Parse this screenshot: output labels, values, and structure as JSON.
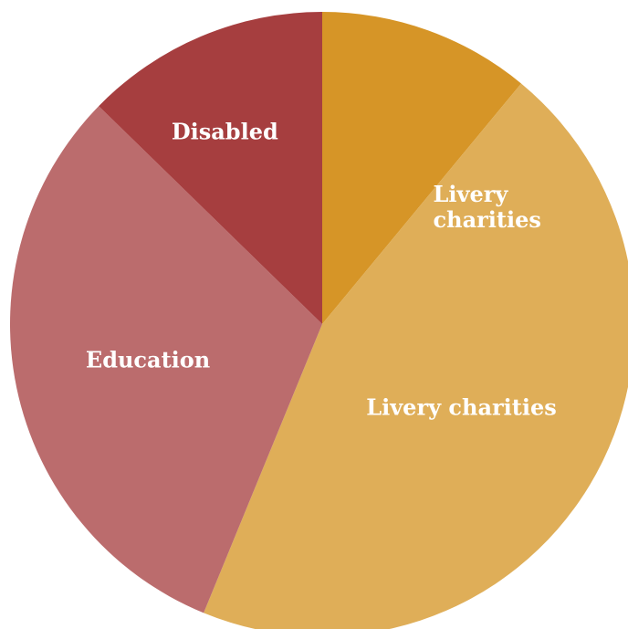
{
  "chart_data": {
    "type": "pie",
    "title": "",
    "start_angle_deg": 0,
    "direction": "clockwise",
    "slices": [
      {
        "label_lines": [
          "Livery",
          "charities"
        ],
        "value": 11.0,
        "color": "#D69527"
      },
      {
        "label_lines": [
          "Livery charities"
        ],
        "value": 45.2,
        "color": "#DFAE58"
      },
      {
        "label_lines": [
          "Education"
        ],
        "value": 31.1,
        "color": "#BB6C6D"
      },
      {
        "label_lines": [
          "Disabled"
        ],
        "value": 12.7,
        "color": "#A63E3F"
      }
    ]
  }
}
